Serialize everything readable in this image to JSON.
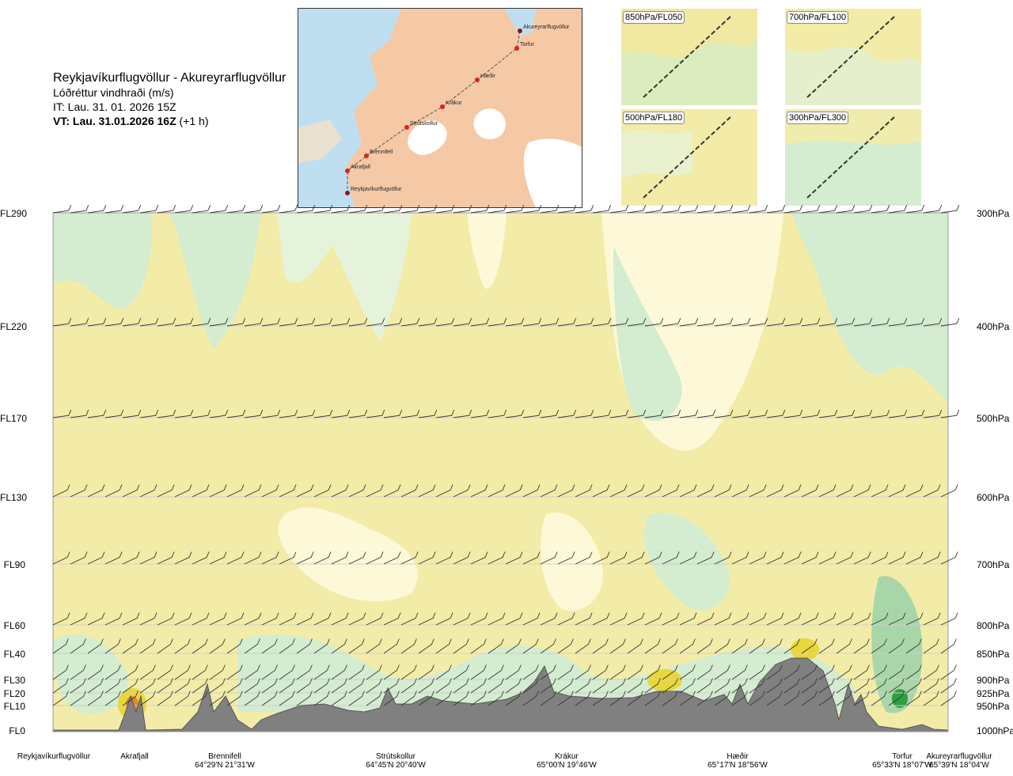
{
  "header": {
    "title": "Reykjavíkurflugvöllur - Akureyrarflugvöllur",
    "subtitle": "Lóðréttur vindhraði (m/s)",
    "issue_time": "IT: Lau. 31. 01. 2026 15Z",
    "valid_time_bold": "VT: Lau. 31.01.2026 16Z",
    "valid_time_offset": " (+1 h)"
  },
  "map": {
    "places": [
      {
        "name": "Akureyrarflugvöllur"
      },
      {
        "name": "Torfur"
      },
      {
        "name": "Hæðir"
      },
      {
        "name": "Krákur"
      },
      {
        "name": "Strútskollur"
      },
      {
        "name": "Brennifell"
      },
      {
        "name": "Akrafjall"
      },
      {
        "name": "Reykjavíkurflugvöllur"
      }
    ]
  },
  "panels": [
    {
      "label": "850hPa/FL050"
    },
    {
      "label": "700hPa/FL100"
    },
    {
      "label": "500hPa/FL180"
    },
    {
      "label": "300hPa/FL300"
    }
  ],
  "colors": {
    "background_field": "#f3eca8",
    "light_green": "#d4ecd0",
    "pale_yellow": "#fdf9d8",
    "mid_green": "#a9d6a8",
    "dark_green": "#2e9e3e",
    "yellow": "#e9d63a",
    "orange": "#e58a2a",
    "terrain": "#808080"
  },
  "chart_data": {
    "type": "heatmap",
    "title": "Lóðréttur vindhraði (m/s)",
    "left_axis_levels": [
      "FL290",
      "FL220",
      "FL170",
      "FL130",
      "FL90",
      "FL60",
      "FL40",
      "FL30",
      "FL20",
      "FL10",
      "FL0"
    ],
    "right_axis_levels": [
      "300hPa",
      "400hPa",
      "500hPa",
      "600hPa",
      "700hPa",
      "800hPa",
      "850hPa",
      "900hPa",
      "925hPa",
      "950hPa",
      "1000hPa"
    ],
    "locations": [
      {
        "name": "Reykjavíkurflugvöllur",
        "coord": ""
      },
      {
        "name": "Akrafjall",
        "coord": ""
      },
      {
        "name": "Brennifell",
        "coord": "64°29'N 21°31'W"
      },
      {
        "name": "Strútskollur",
        "coord": "64°45'N 20°40'W"
      },
      {
        "name": "Krákur",
        "coord": "65°00'N 19°46'W"
      },
      {
        "name": "Hæðir",
        "coord": "65°17'N 18°56'W"
      },
      {
        "name": "Torfur",
        "coord": "65°33'N 18°07'W"
      },
      {
        "name": "Akureyrarflugvöllur",
        "coord": "65°39'N 18°04'W"
      }
    ]
  }
}
